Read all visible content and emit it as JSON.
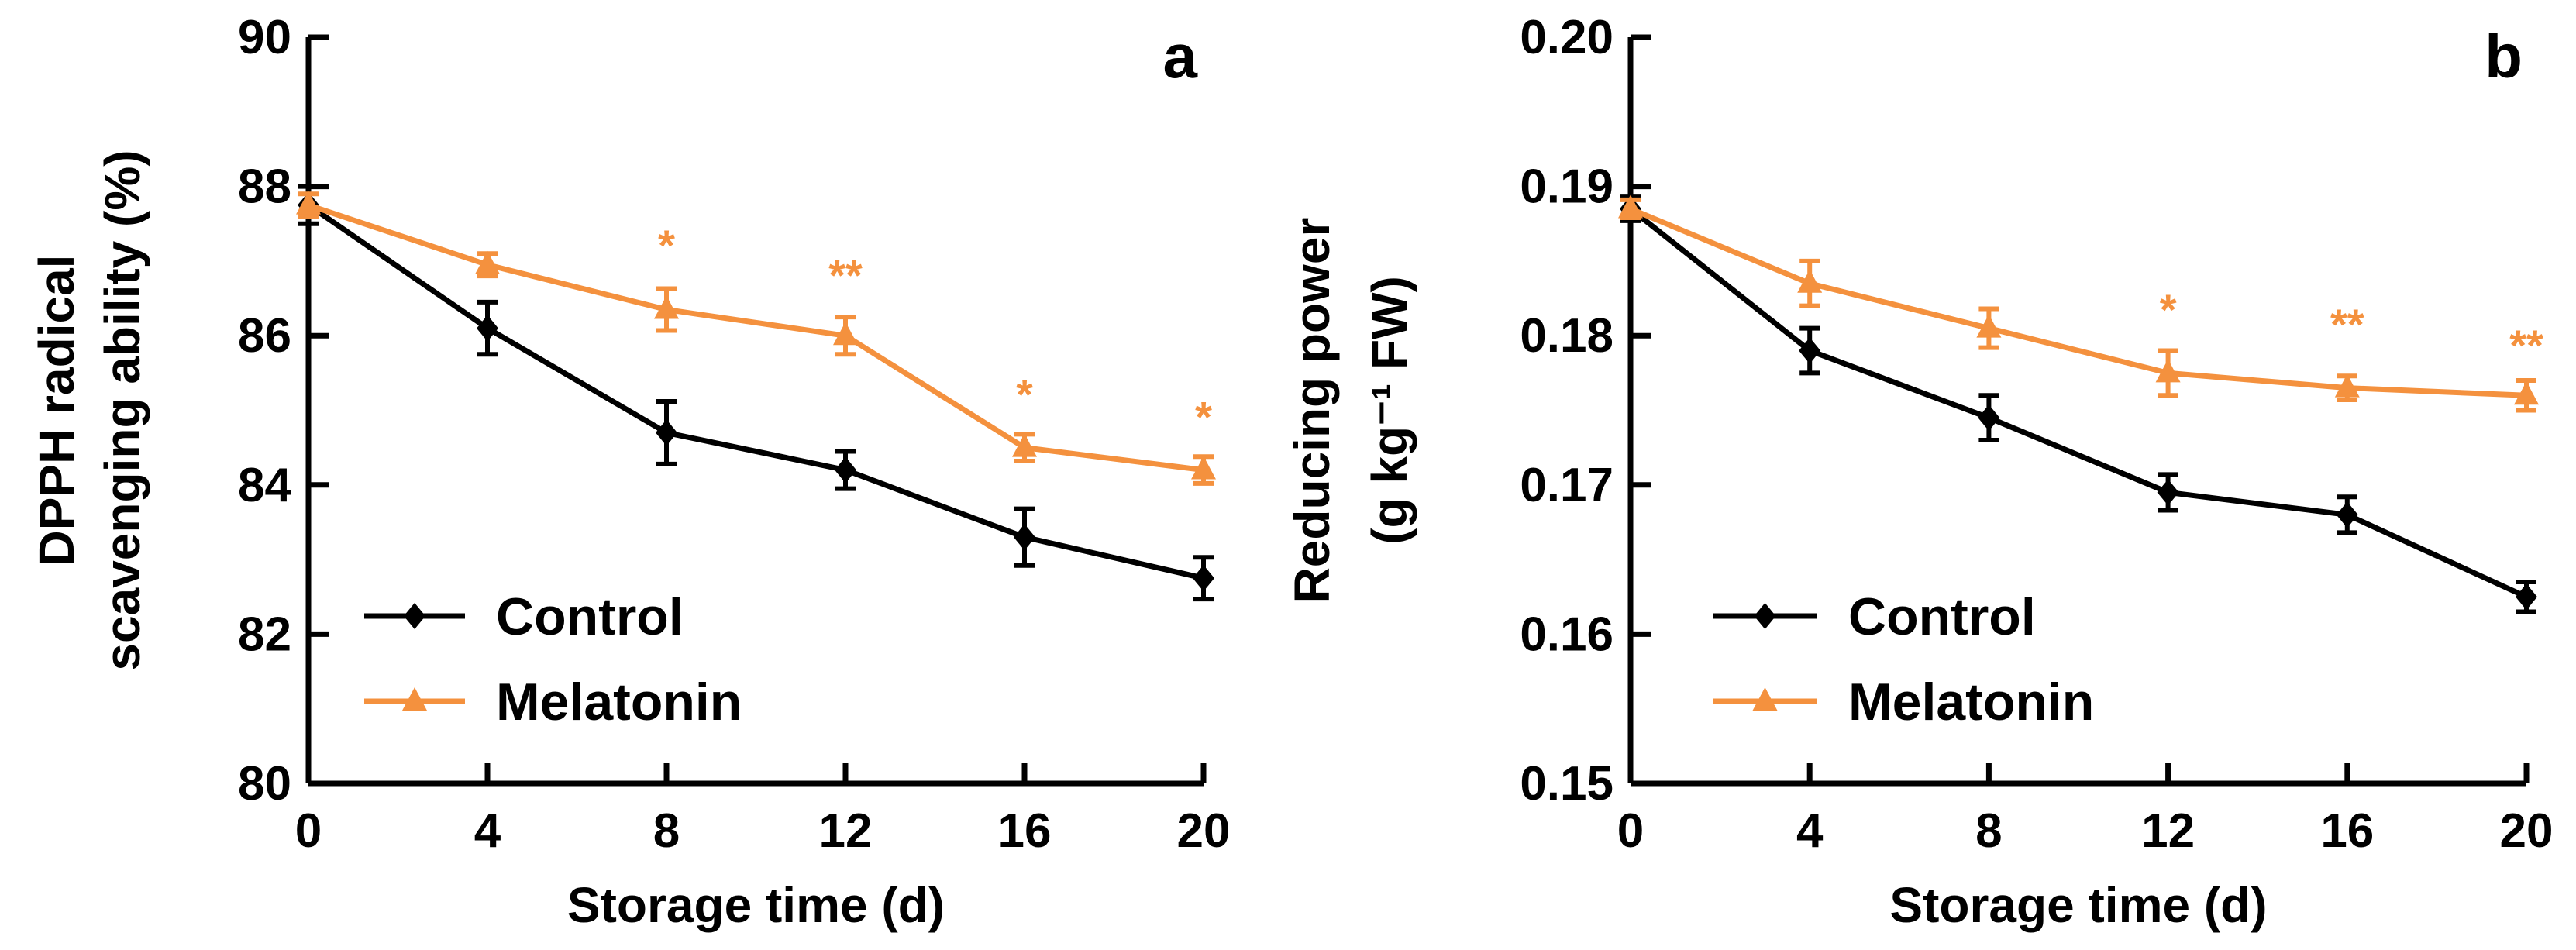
{
  "chart_data": [
    {
      "type": "line",
      "panel_label": "a",
      "xlabel": "Storage time (d)",
      "ylabel_lines": [
        "DPPH radical",
        "scavenging ability (%)"
      ],
      "xlim": [
        0,
        20
      ],
      "ylim": [
        80,
        90
      ],
      "x_ticks": [
        0,
        4,
        8,
        12,
        16,
        20
      ],
      "y_ticks": [
        80,
        82,
        84,
        86,
        88,
        90
      ],
      "y_tick_labels": [
        "80",
        "82",
        "84",
        "86",
        "88",
        "90"
      ],
      "x": [
        0,
        4,
        8,
        12,
        16,
        20
      ],
      "legend_position": "bottom-left",
      "series": [
        {
          "name": "Control",
          "color": "#000000",
          "marker": "diamond",
          "values": [
            87.75,
            86.1,
            84.7,
            84.2,
            83.3,
            82.75
          ],
          "errors": [
            0.25,
            0.35,
            0.42,
            0.25,
            0.38,
            0.28
          ]
        },
        {
          "name": "Melatonin",
          "color": "#F4913E",
          "marker": "triangle",
          "values": [
            87.75,
            86.95,
            86.35,
            86.0,
            84.5,
            84.2
          ],
          "errors": [
            0.15,
            0.15,
            0.28,
            0.25,
            0.18,
            0.18
          ]
        }
      ],
      "significance": [
        {
          "x": 8,
          "y": 87.3,
          "label": "*"
        },
        {
          "x": 12,
          "y": 86.9,
          "label": "**"
        },
        {
          "x": 16,
          "y": 85.3,
          "label": "*"
        },
        {
          "x": 20,
          "y": 85.0,
          "label": "*"
        }
      ]
    },
    {
      "type": "line",
      "panel_label": "b",
      "xlabel": "Storage time (d)",
      "ylabel_lines": [
        "Reducing power",
        "(g kg⁻¹ FW)"
      ],
      "xlim": [
        0,
        20
      ],
      "ylim": [
        0.15,
        0.2
      ],
      "x_ticks": [
        0,
        4,
        8,
        12,
        16,
        20
      ],
      "y_ticks": [
        0.15,
        0.16,
        0.17,
        0.18,
        0.19,
        0.2
      ],
      "y_tick_labels": [
        "0.15",
        "0.16",
        "0.17",
        "0.18",
        "0.19",
        "0.20"
      ],
      "x": [
        0,
        4,
        8,
        12,
        16,
        20
      ],
      "legend_position": "bottom-left",
      "series": [
        {
          "name": "Control",
          "color": "#000000",
          "marker": "diamond",
          "values": [
            0.1885,
            0.179,
            0.1745,
            0.1695,
            0.168,
            0.1625
          ],
          "errors": [
            0.0008,
            0.0015,
            0.0015,
            0.0012,
            0.0012,
            0.001
          ]
        },
        {
          "name": "Melatonin",
          "color": "#F4913E",
          "marker": "triangle",
          "values": [
            0.1885,
            0.1835,
            0.1805,
            0.1775,
            0.1765,
            0.176
          ],
          "errors": [
            0.0006,
            0.0015,
            0.0013,
            0.0015,
            0.0008,
            0.001
          ]
        }
      ],
      "significance": [
        {
          "x": 12,
          "y": 0.1822,
          "label": "*"
        },
        {
          "x": 16,
          "y": 0.1812,
          "label": "**"
        },
        {
          "x": 20,
          "y": 0.1798,
          "label": "**"
        }
      ]
    }
  ]
}
